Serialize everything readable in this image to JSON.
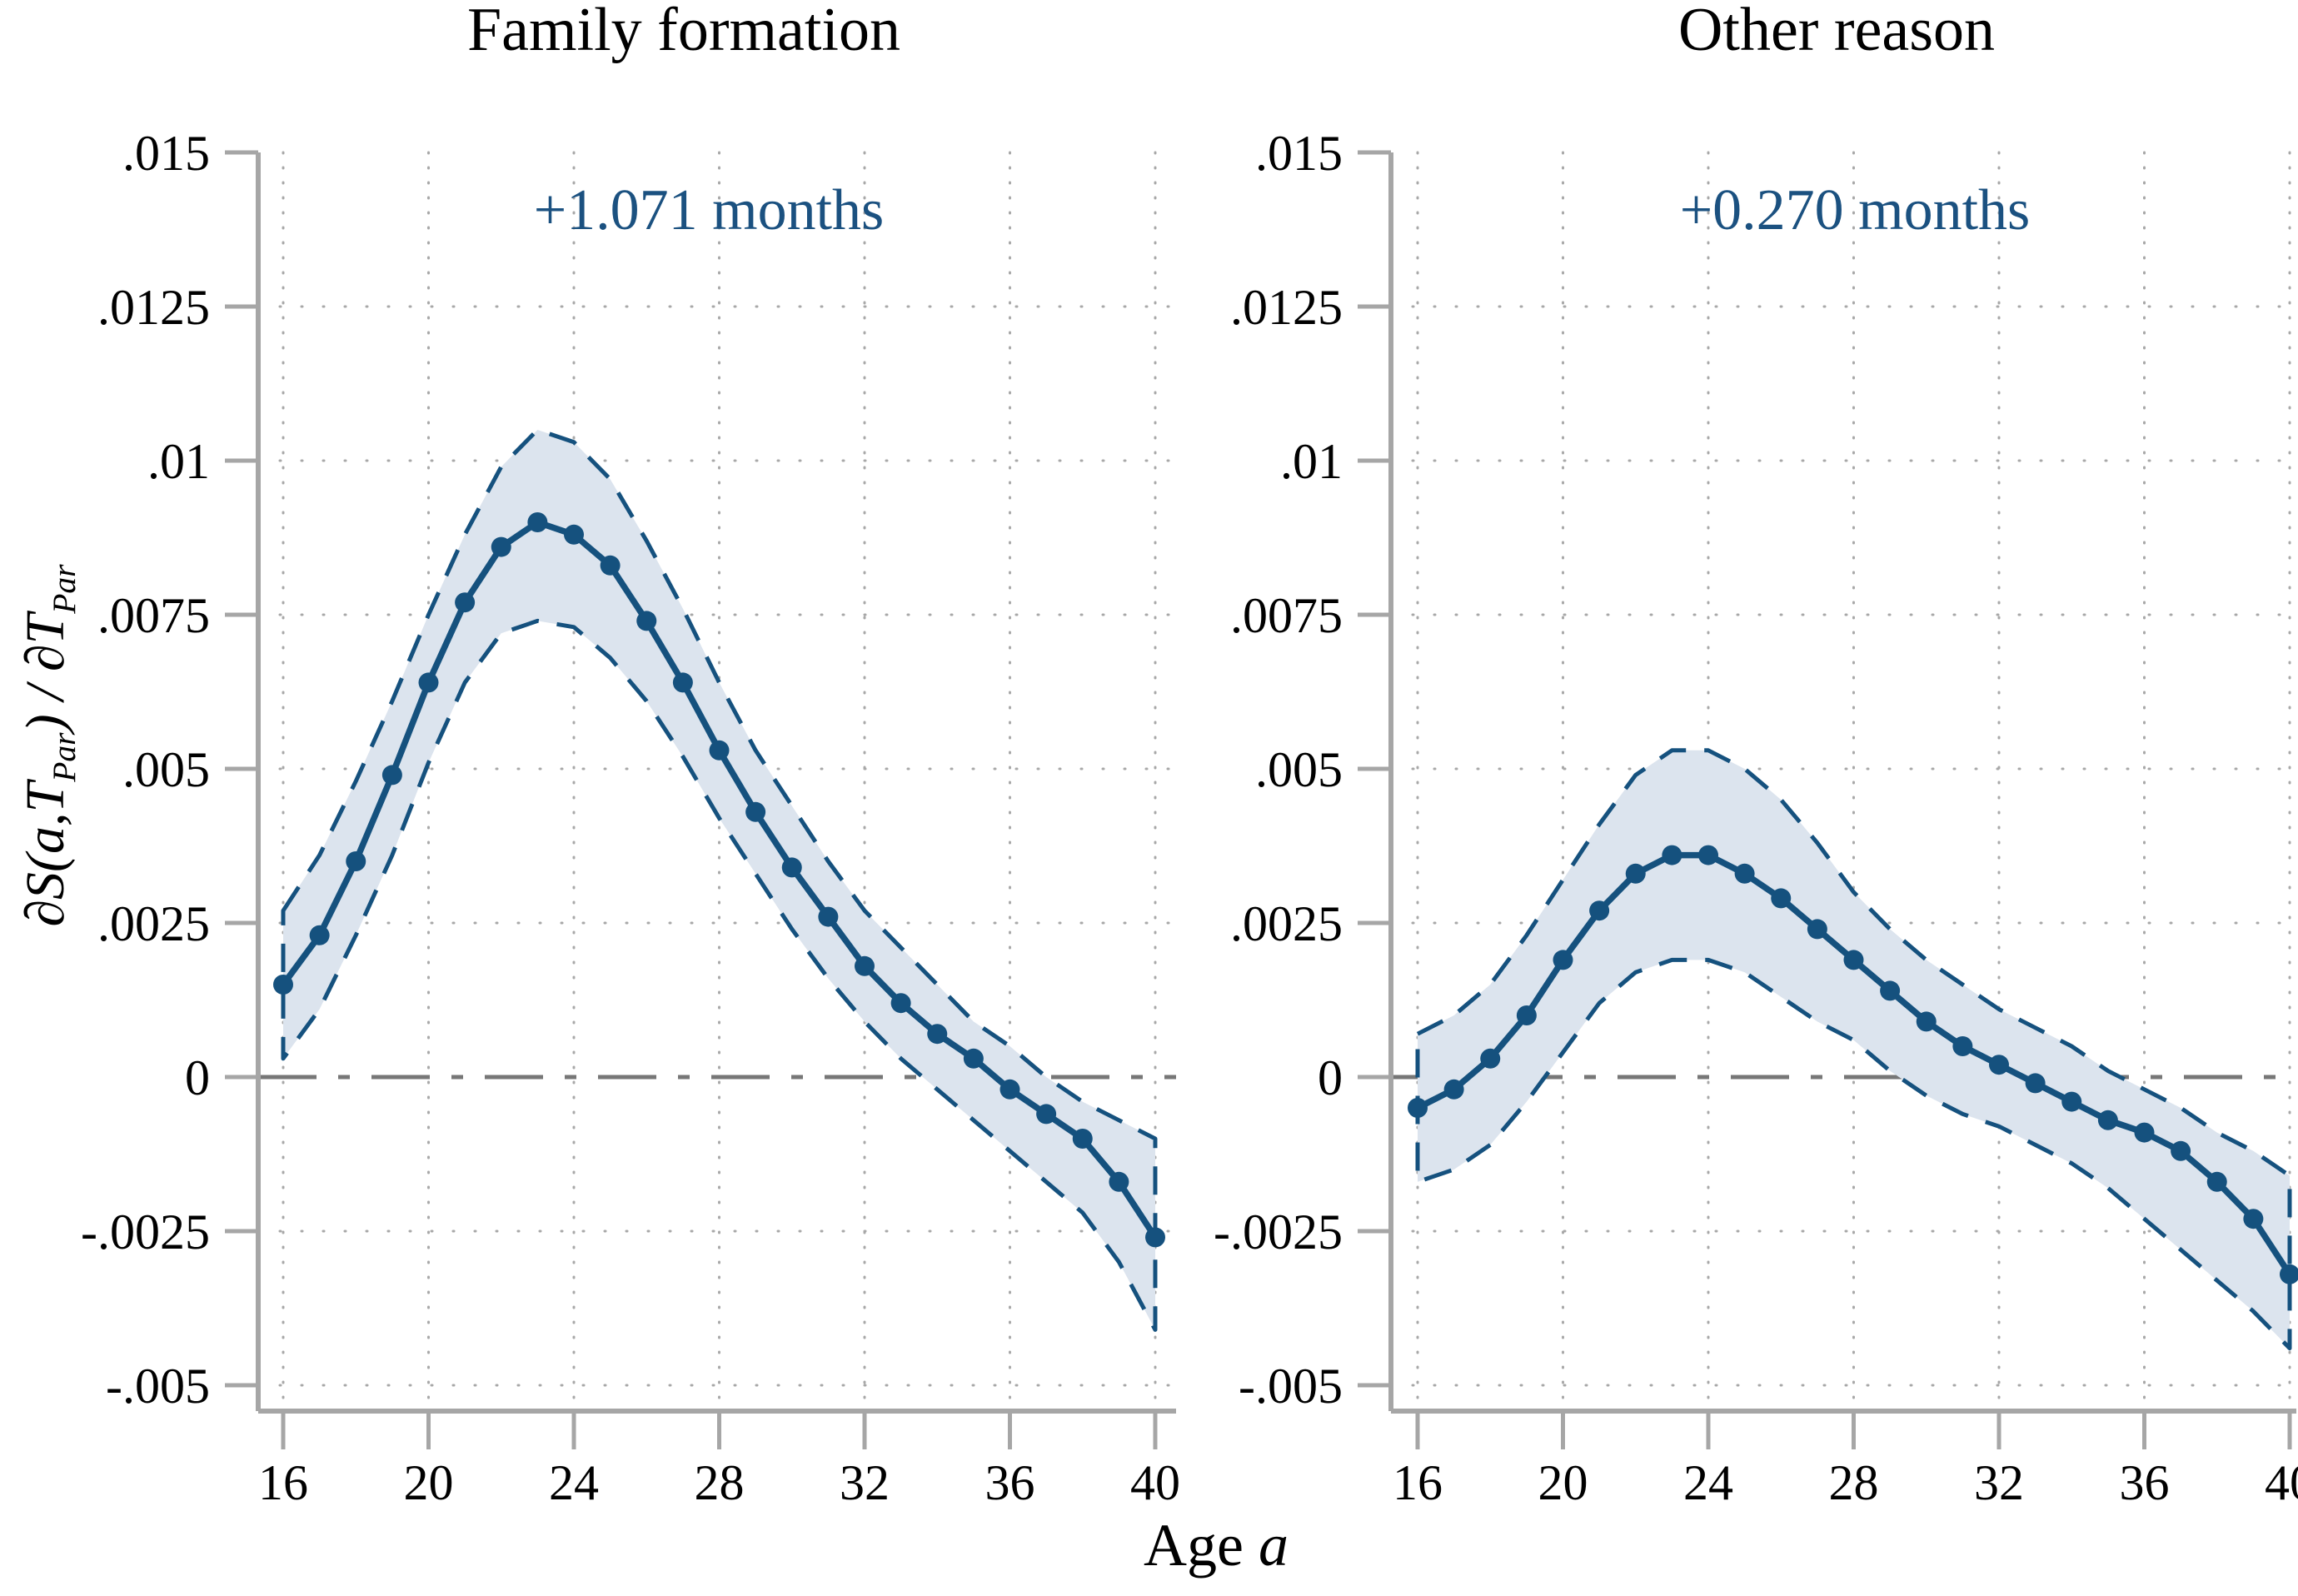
{
  "figure_title": "",
  "colors": {
    "estimate_line": "#15517E",
    "confidence_band_fill": "#DCE4EE",
    "annotation_text": "#1B5180",
    "zero_line": "#777777",
    "axis_line": "#A6A6A6",
    "gridline": "#A8A8A8",
    "text": "#000000",
    "background": "#FFFFFF"
  },
  "axis": {
    "y_tick_labels": [
      ".015",
      ".0125",
      ".01",
      ".0075",
      ".005",
      ".0025",
      "0",
      "-.0025",
      "-.005"
    ],
    "y_tick_values": [
      0.015,
      0.0125,
      0.01,
      0.0075,
      0.005,
      0.0025,
      0,
      -0.0025,
      -0.005
    ],
    "grid_y_values": [
      0.0125,
      0.01,
      0.0075,
      0.005,
      0.0025,
      -0.0025,
      -0.005
    ],
    "x_tick_labels": [
      "16",
      "20",
      "24",
      "28",
      "32",
      "36",
      "40"
    ],
    "x_tick_values": [
      16,
      20,
      24,
      28,
      32,
      36,
      40
    ],
    "xlabel": "Age a",
    "ylabel": "∂S(a,T_Par) / ∂T_Par",
    "xlabel_segments": [
      {
        "text": "Age ",
        "italic": false
      },
      {
        "text": "a",
        "italic": true
      }
    ],
    "ylabel_segments": [
      {
        "text": "∂S(a,T",
        "sub": false
      },
      {
        "text": "Par",
        "sub": true
      },
      {
        "text": ") / ∂T",
        "sub": false
      },
      {
        "text": "Par",
        "sub": true
      }
    ]
  },
  "chart_data": [
    {
      "type": "line",
      "panel": "left",
      "title": "Family formation",
      "annotation_label": "+1.071 months",
      "xlabel": "Age a",
      "ylabel": "∂S(a,T_Par) / ∂T_Par",
      "xlim": [
        16,
        40
      ],
      "ylim": [
        -0.005,
        0.015
      ],
      "grid": true,
      "legend": "none",
      "x": [
        16,
        17,
        18,
        19,
        20,
        21,
        22,
        23,
        24,
        25,
        26,
        27,
        28,
        29,
        30,
        31,
        32,
        33,
        34,
        35,
        36,
        37,
        38,
        39,
        40
      ],
      "series": [
        {
          "name": "point estimate",
          "style": "solid_line_with_markers",
          "values": [
            0.0015,
            0.0023,
            0.0035,
            0.0049,
            0.0064,
            0.0077,
            0.0086,
            0.009,
            0.0088,
            0.0083,
            0.0074,
            0.0064,
            0.0053,
            0.0043,
            0.0034,
            0.0026,
            0.0018,
            0.0012,
            0.0007,
            0.0003,
            -0.0002,
            -0.0006,
            -0.001,
            -0.0017,
            -0.0026
          ]
        },
        {
          "name": "CI upper",
          "style": "dashed_line",
          "values": [
            0.0027,
            0.0036,
            0.0048,
            0.0061,
            0.0075,
            0.0088,
            0.0099,
            0.0105,
            0.0103,
            0.0097,
            0.0087,
            0.0076,
            0.0064,
            0.0053,
            0.0044,
            0.0035,
            0.0027,
            0.0021,
            0.0015,
            0.0009,
            0.0005,
            0.0,
            -0.0004,
            -0.0007,
            -0.001
          ]
        },
        {
          "name": "CI lower",
          "style": "dashed_line",
          "values": [
            0.0003,
            0.0011,
            0.0023,
            0.0036,
            0.0051,
            0.0064,
            0.0072,
            0.0074,
            0.0073,
            0.0068,
            0.0061,
            0.0052,
            0.0042,
            0.0033,
            0.0024,
            0.0016,
            0.0009,
            0.0003,
            -0.0002,
            -0.0007,
            -0.0012,
            -0.0017,
            -0.0022,
            -0.003,
            -0.0041
          ]
        }
      ]
    },
    {
      "type": "line",
      "panel": "right",
      "title": "Other reason",
      "annotation_label": "+0.270 months",
      "xlabel": "Age a",
      "ylabel": "∂S(a,T_Par) / ∂T_Par",
      "xlim": [
        16,
        40
      ],
      "ylim": [
        -0.005,
        0.015
      ],
      "grid": true,
      "legend": "none",
      "x": [
        16,
        17,
        18,
        19,
        20,
        21,
        22,
        23,
        24,
        25,
        26,
        27,
        28,
        29,
        30,
        31,
        32,
        33,
        34,
        35,
        36,
        37,
        38,
        39,
        40
      ],
      "series": [
        {
          "name": "point estimate",
          "style": "solid_line_with_markers",
          "values": [
            -0.0005,
            -0.0002,
            0.0003,
            0.001,
            0.0019,
            0.0027,
            0.0033,
            0.0036,
            0.0036,
            0.0033,
            0.0029,
            0.0024,
            0.0019,
            0.0014,
            0.0009,
            0.0005,
            0.0002,
            -0.0001,
            -0.0004,
            -0.0007,
            -0.0009,
            -0.0012,
            -0.0017,
            -0.0023,
            -0.0032
          ]
        },
        {
          "name": "CI upper",
          "style": "dashed_line",
          "values": [
            0.0007,
            0.001,
            0.0015,
            0.0023,
            0.0032,
            0.0041,
            0.0049,
            0.0053,
            0.0053,
            0.005,
            0.0045,
            0.0038,
            0.003,
            0.0024,
            0.0019,
            0.0015,
            0.0011,
            0.0008,
            0.0005,
            0.0001,
            -0.0002,
            -0.0005,
            -0.0009,
            -0.0012,
            -0.0016
          ]
        },
        {
          "name": "CI lower",
          "style": "dashed_line",
          "values": [
            -0.0017,
            -0.0015,
            -0.0011,
            -0.0004,
            0.0004,
            0.0012,
            0.0017,
            0.0019,
            0.0019,
            0.0017,
            0.0013,
            0.0009,
            0.0006,
            0.0001,
            -0.0003,
            -0.0006,
            -0.0008,
            -0.0011,
            -0.0014,
            -0.0018,
            -0.0023,
            -0.0028,
            -0.0033,
            -0.0038,
            -0.0044
          ]
        }
      ]
    }
  ]
}
